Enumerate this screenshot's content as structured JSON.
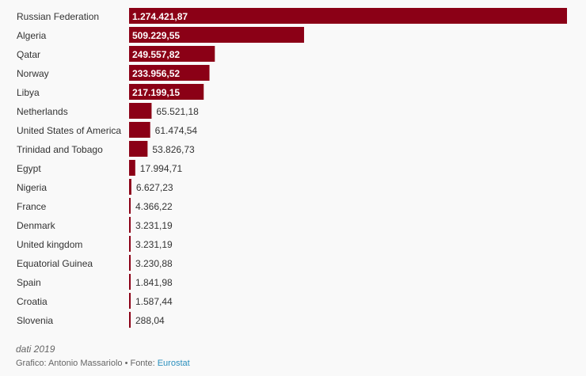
{
  "chart_data": {
    "type": "bar",
    "orientation": "horizontal",
    "categories": [
      "Russian Federation",
      "Algeria",
      "Qatar",
      "Norway",
      "Libya",
      "Netherlands",
      "United States of America",
      "Trinidad and Tobago",
      "Egypt",
      "Nigeria",
      "France",
      "Denmark",
      "United kingdom",
      "Equatorial Guinea",
      "Spain",
      "Croatia",
      "Slovenia"
    ],
    "values": [
      1274421.87,
      509229.55,
      249557.82,
      233956.52,
      217199.15,
      65521.18,
      61474.54,
      53826.73,
      17994.71,
      6627.23,
      4366.22,
      3231.19,
      3231.19,
      3230.88,
      1841.98,
      1587.44,
      288.04
    ],
    "labels": [
      "1.274.421,87",
      "509.229,55",
      "249.557,82",
      "233.956,52",
      "217.199,15",
      "65.521,18",
      "61.474,54",
      "53.826,73",
      "17.994,71",
      "6.627,23",
      "4.366,22",
      "3.231,19",
      "3.231,19",
      "3.230,88",
      "1.841,98",
      "1.587,44",
      "288,04"
    ],
    "xlim": [
      0,
      1274421.87
    ],
    "bar_color": "#8b0016",
    "inside_label_color": "#ffffff",
    "outside_label_color": "#333333"
  },
  "footer": {
    "note": "dati 2019",
    "credit": "Grafico: Antonio Massariolo • Fonte: ",
    "source_label": "Eurostat"
  },
  "colors": {
    "link": "#2a8fbd",
    "background": "#f9f9f9"
  }
}
